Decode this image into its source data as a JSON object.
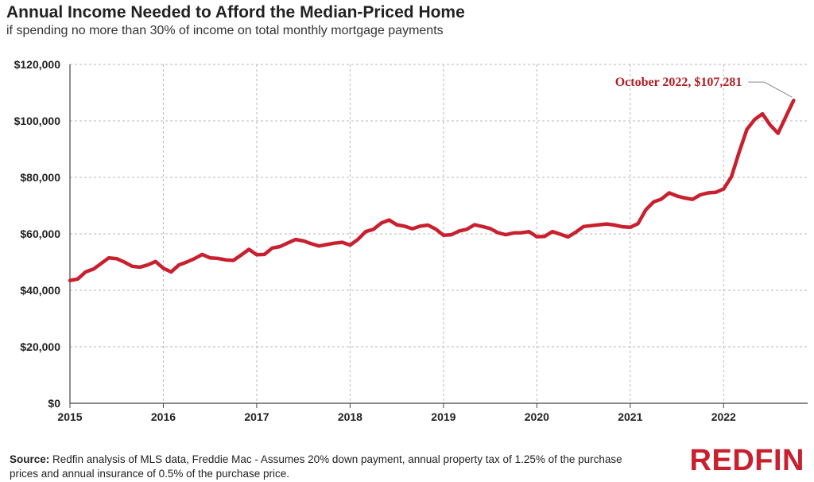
{
  "chart_data": {
    "type": "line",
    "title": "Annual Income Needed to Afford the Median-Priced Home",
    "subtitle": "if spending no more than 30% of income on total monthly mortgage payments",
    "xlabel": "",
    "ylabel": "",
    "x_ticks": [
      "2015",
      "2016",
      "2017",
      "2018",
      "2019",
      "2020",
      "2021",
      "2022"
    ],
    "y_ticks": [
      "$0",
      "$20,000",
      "$40,000",
      "$60,000",
      "$80,000",
      "$100,000",
      "$120,000"
    ],
    "ylim": [
      0,
      120000
    ],
    "xlim": [
      2015.0,
      2022.9
    ],
    "grid": true,
    "line_color": "#c8202f",
    "series": [
      {
        "x": [
          2015.0,
          2015.0833,
          2015.1667,
          2015.25,
          2015.3333,
          2015.4167,
          2015.5,
          2015.5833,
          2015.6667,
          2015.75,
          2015.8333,
          2015.9167,
          2016.0,
          2016.0833,
          2016.1667,
          2016.25,
          2016.3333,
          2016.4167,
          2016.5,
          2016.5833,
          2016.6667,
          2016.75,
          2016.8333,
          2016.9167,
          2017.0,
          2017.0833,
          2017.1667,
          2017.25,
          2017.3333,
          2017.4167,
          2017.5,
          2017.5833,
          2017.6667,
          2017.75,
          2017.8333,
          2017.9167,
          2018.0,
          2018.0833,
          2018.1667,
          2018.25,
          2018.3333,
          2018.4167,
          2018.5,
          2018.5833,
          2018.6667,
          2018.75,
          2018.8333,
          2018.9167,
          2019.0,
          2019.0833,
          2019.1667,
          2019.25,
          2019.3333,
          2019.4167,
          2019.5,
          2019.5833,
          2019.6667,
          2019.75,
          2019.8333,
          2019.9167,
          2020.0,
          2020.0833,
          2020.1667,
          2020.25,
          2020.3333,
          2020.4167,
          2020.5,
          2020.5833,
          2020.6667,
          2020.75,
          2020.8333,
          2020.9167,
          2021.0,
          2021.0833,
          2021.1667,
          2021.25,
          2021.3333,
          2021.4167,
          2021.5,
          2021.5833,
          2021.6667,
          2021.75,
          2021.8333,
          2021.9167,
          2022.0,
          2022.0833,
          2022.1667,
          2022.25,
          2022.3333,
          2022.4167,
          2022.5,
          2022.5833,
          2022.6667,
          2022.75
        ],
        "y": [
          43500,
          44000,
          46500,
          47500,
          49500,
          51500,
          51200,
          50000,
          48500,
          48200,
          49000,
          50200,
          47800,
          46500,
          49000,
          50000,
          51200,
          52700,
          51500,
          51300,
          50800,
          50600,
          52500,
          54500,
          52600,
          52700,
          55000,
          55500,
          56800,
          58000,
          57500,
          56500,
          55700,
          56200,
          56700,
          57000,
          56000,
          58000,
          60800,
          61600,
          63800,
          64900,
          63200,
          62700,
          61800,
          62700,
          63100,
          61700,
          59500,
          59700,
          61000,
          61600,
          63200,
          62600,
          61900,
          60400,
          59700,
          60300,
          60400,
          60800,
          59000,
          59100,
          60800,
          59900,
          58900,
          60600,
          62600,
          62900,
          63200,
          63500,
          63100,
          62500,
          62300,
          63600,
          68500,
          71300,
          72300,
          74500,
          73400,
          72700,
          72200,
          73800,
          74500,
          74700,
          75900,
          80200,
          89000,
          97000,
          100500,
          102500,
          98500,
          95600,
          101500,
          107281
        ]
      }
    ],
    "annotation": "October 2022, $107,281"
  },
  "footer": {
    "source_label": "Source:",
    "source_text": " Redfin analysis of MLS data, Freddie Mac - Assumes 20% down payment, annual property tax of 1.25% of the purchase prices and annual insurance of 0.5% of the purchase price.",
    "logo_text": "REDFIN"
  }
}
